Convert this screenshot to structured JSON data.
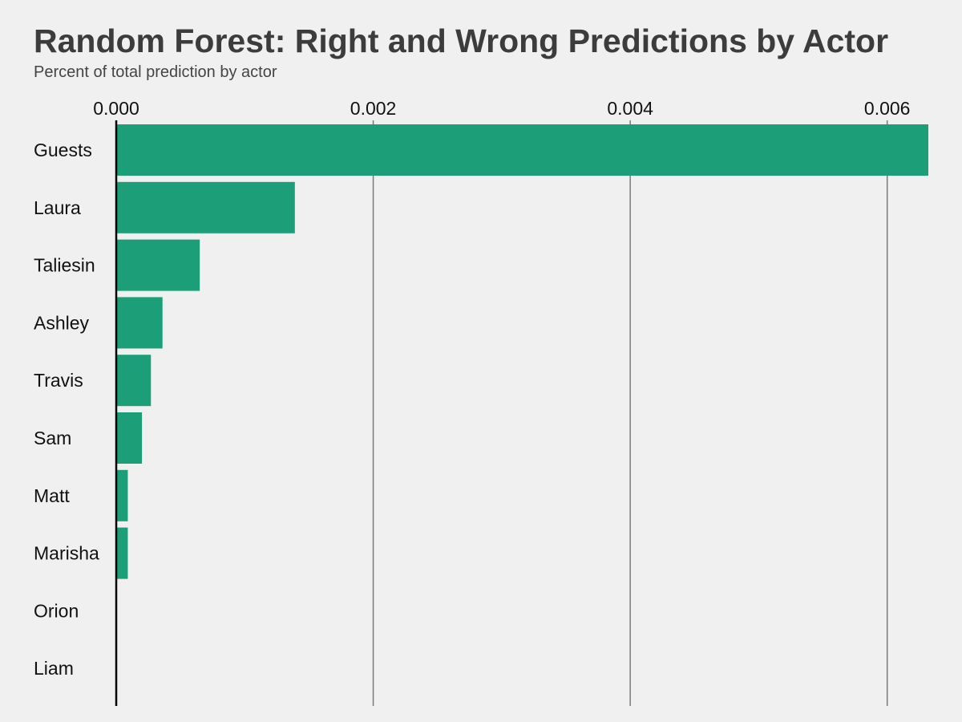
{
  "chart_data": {
    "type": "bar",
    "orientation": "horizontal",
    "title": "Random Forest: Right and Wrong Predictions by Actor",
    "subtitle": "Percent of total prediction by actor",
    "xlabel": "",
    "ylabel": "",
    "categories": [
      "Guests",
      "Laura",
      "Taliesin",
      "Ashley",
      "Travis",
      "Sam",
      "Matt",
      "Marisha",
      "Orion",
      "Liam"
    ],
    "values": [
      0.00632,
      0.00139,
      0.00065,
      0.00036,
      0.00027,
      0.0002,
      9e-05,
      9e-05,
      0,
      0
    ],
    "xlim": [
      0,
      0.00632
    ],
    "xticks": [
      0,
      0.002,
      0.004,
      0.006
    ],
    "xtick_labels": [
      "0.000",
      "0.002",
      "0.004",
      "0.006"
    ],
    "x_axis_position": "top",
    "grid": "vertical",
    "legend": "none",
    "colors": {
      "bar": "#1c9e78",
      "background": "#f0f0f0",
      "grid": "#7a7a7a",
      "baseline": "#000000",
      "title": "#3c3c3c",
      "subtitle": "#444444"
    }
  }
}
